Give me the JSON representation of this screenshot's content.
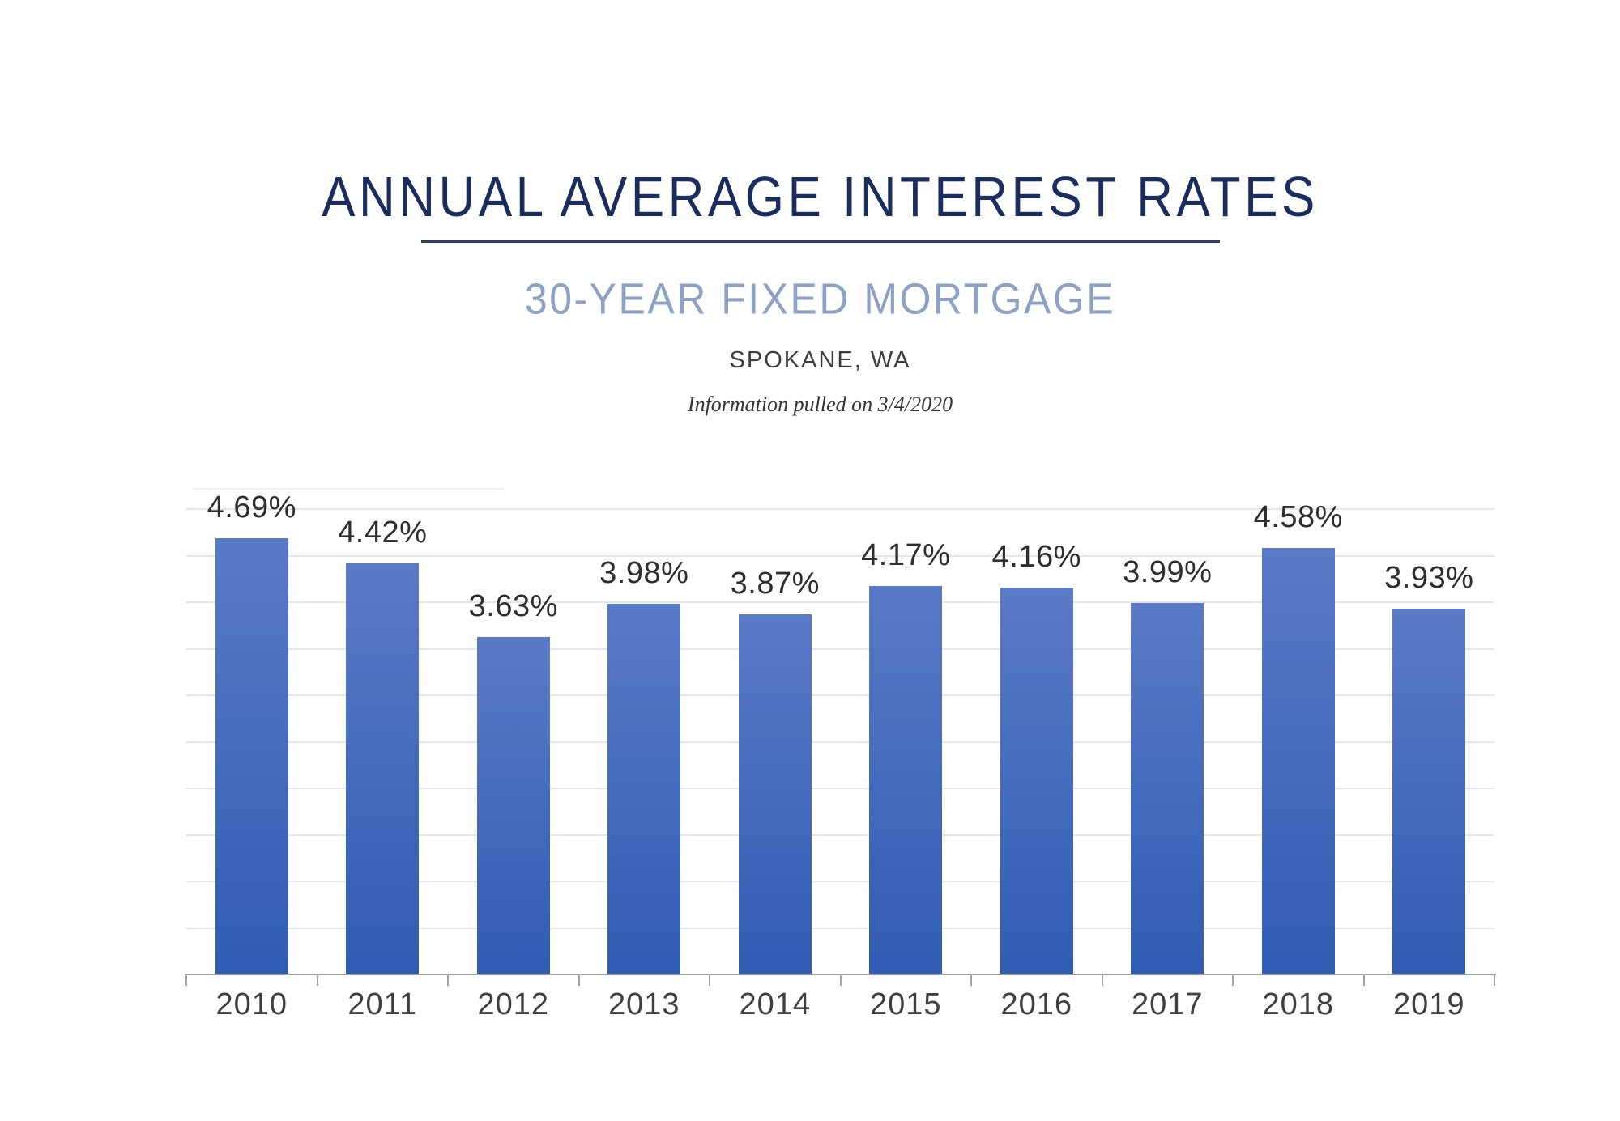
{
  "header": {
    "title": "ANNUAL AVERAGE INTEREST RATES",
    "subtitle": "30-YEAR FIXED MORTGAGE",
    "location": "SPOKANE, WA",
    "note": "Information pulled on 3/4/2020"
  },
  "colors": {
    "title_navy": "#1b2d5e",
    "underline_navy": "#2e3f6f",
    "subtitle_steel_blue": "#8da1c4",
    "location_gray": "#3e3e3e",
    "bar_gradient_top": "#5a7ac7",
    "bar_gradient_bottom": "#2f5cb3",
    "gridline": "#e3e6f0",
    "axis_gray": "#a2a2a2",
    "value_label_gray": "#2e2e2e"
  },
  "chart_data": {
    "type": "bar",
    "title": "ANNUAL AVERAGE INTEREST RATES",
    "subtitle": "30-YEAR FIXED MORTGAGE",
    "categories": [
      "2010",
      "2011",
      "2012",
      "2013",
      "2014",
      "2015",
      "2016",
      "2017",
      "2018",
      "2019"
    ],
    "values": [
      4.69,
      4.42,
      3.63,
      3.98,
      3.87,
      4.17,
      4.16,
      3.99,
      4.58,
      3.93
    ],
    "labels": [
      "4.69%",
      "4.42%",
      "3.63%",
      "3.98%",
      "3.87%",
      "4.17%",
      "4.16%",
      "3.99%",
      "4.58%",
      "3.93%"
    ],
    "xlabel": "",
    "ylabel": "",
    "ylim": [
      0,
      5
    ],
    "gridline_step": 0.5,
    "grid": true,
    "legend": false,
    "value_labels_shown": true,
    "y_axis_tick_labels_shown": false
  }
}
